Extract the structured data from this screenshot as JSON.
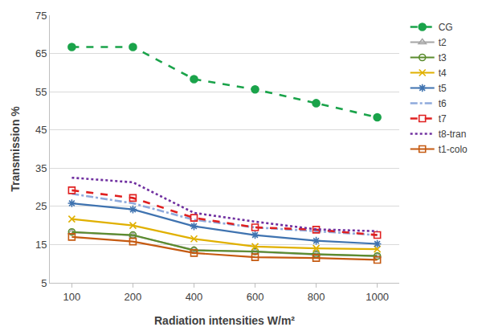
{
  "chart_data": {
    "type": "line",
    "x_label": "Radiation intensities W/m²",
    "y_label": "Transmission %",
    "categories": [
      "100",
      "200",
      "400",
      "600",
      "800",
      "1000"
    ],
    "ylim": [
      5,
      75
    ],
    "yticks": [
      5,
      15,
      25,
      35,
      45,
      55,
      65,
      75
    ],
    "grid": true,
    "legend": "right",
    "series": [
      {
        "name": "CG",
        "color": "#1aa34a",
        "marker": "circle",
        "line_style": "dash",
        "values": [
          66.7,
          66.7,
          58.3,
          55.6,
          52.0,
          48.3
        ]
      },
      {
        "name": "t2",
        "color": "#a5a5a5",
        "marker": "triangle-up-open",
        "line_style": "solid",
        "values": [
          18.2,
          17.4,
          13.6,
          13.1,
          12.4,
          12.0
        ]
      },
      {
        "name": "t3",
        "color": "#5b8c2e",
        "marker": "circle-open",
        "line_style": "solid",
        "values": [
          18.3,
          17.5,
          13.5,
          13.2,
          12.5,
          12.0
        ]
      },
      {
        "name": "t4",
        "color": "#e0b000",
        "marker": "x-thin-open",
        "line_style": "solid",
        "values": [
          21.7,
          20.0,
          16.5,
          14.5,
          14.0,
          13.8
        ]
      },
      {
        "name": "t5",
        "color": "#3f73b0",
        "marker": "asterisk-open",
        "line_style": "solid",
        "values": [
          25.8,
          24.2,
          19.8,
          17.5,
          16.0,
          15.2
        ]
      },
      {
        "name": "t6",
        "color": "#8faadc",
        "line_style": "dashdot",
        "values": [
          28.3,
          25.8,
          21.5,
          19.5,
          18.5,
          17.5
        ]
      },
      {
        "name": "t7",
        "color": "#e02020",
        "marker": "square-open",
        "line_style": "dash",
        "values": [
          29.2,
          27.2,
          22.0,
          19.5,
          18.9,
          17.5
        ]
      },
      {
        "name": "t8-tran",
        "color": "#7030a0",
        "line_style": "dot",
        "values": [
          32.5,
          31.3,
          23.3,
          21.0,
          19.0,
          18.5
        ]
      },
      {
        "name": "t1-colo",
        "color": "#c55a11",
        "marker": "square-open",
        "line_style": "solid",
        "values": [
          17.0,
          15.8,
          12.8,
          11.7,
          11.5,
          11.0
        ]
      }
    ]
  }
}
